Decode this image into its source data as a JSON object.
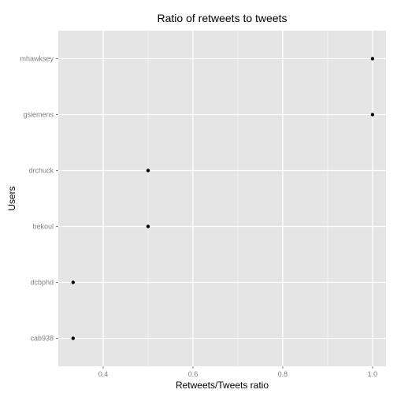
{
  "chart_data": {
    "type": "scatter",
    "title": "Ratio of retweets to tweets",
    "xlabel": "Retweets/Tweets ratio",
    "ylabel": "Users",
    "categories": [
      "cab938",
      "dcbphd",
      "bekoul",
      "drchuck",
      "gsiemens",
      "mhawksey"
    ],
    "values": [
      0.333,
      0.333,
      0.5,
      0.5,
      1.0,
      1.0
    ],
    "xlim": [
      0.3,
      1.03
    ],
    "xticks": [
      0.4,
      0.6,
      0.8,
      1.0
    ],
    "xtick_labels": [
      "0.4",
      "0.6",
      "0.8",
      "1.0"
    ],
    "grid": true,
    "legend": "none",
    "colors": {
      "panel": "#e5e5e5",
      "grid_major": "#ffffff",
      "grid_minor": "#f2f2f2",
      "point": "#000000",
      "tick_label": "#7f7f7f"
    }
  }
}
